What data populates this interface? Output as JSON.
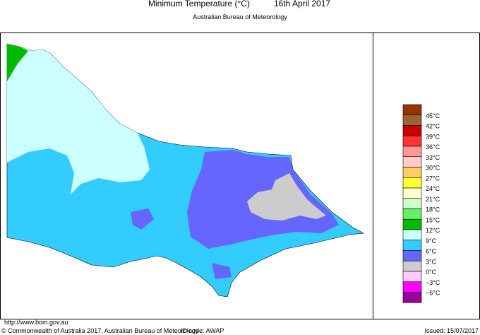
{
  "header": {
    "title": "Minimum Temperature (°C)",
    "date": "16th April 2017",
    "subtitle": "Australian Bureau of Meteorology"
  },
  "legend": {
    "labels": [
      "45°C",
      "42°C",
      "39°C",
      "36°C",
      "33°C",
      "30°C",
      "27°C",
      "24°C",
      "21°C",
      "18°C",
      "15°C",
      "12°C",
      "9°C",
      "6°C",
      "3°C",
      "0°C",
      "−3°C",
      "−6°C"
    ],
    "colors": [
      "#993300",
      "#996633",
      "#cc0000",
      "#ff3333",
      "#ff9999",
      "#ffcccc",
      "#ffcc66",
      "#ffff33",
      "#ffffcc",
      "#ccffcc",
      "#66ee66",
      "#00bb00",
      "#ccffff",
      "#33ccff",
      "#6666ff",
      "#cccccc",
      "#ffccff",
      "#ff00ff",
      "#990099"
    ]
  },
  "footer": {
    "url": "http://www.bom.gov.au",
    "copyright": "© Commonwealth of Australia 2017, Australian Bureau of Meteorology",
    "id_code": "ID code: AWAP",
    "issued": "Issued: 15/07/2017"
  }
}
